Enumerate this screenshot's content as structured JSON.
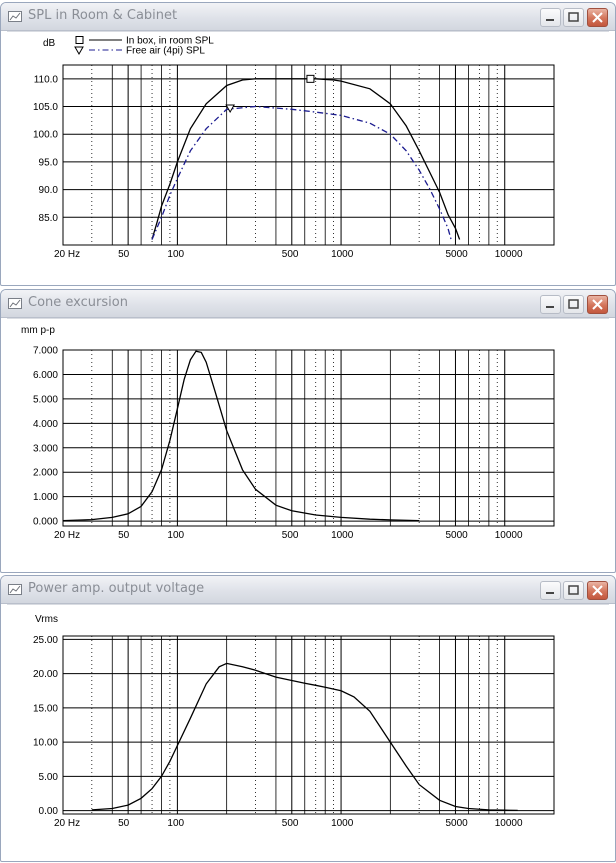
{
  "windows": [
    {
      "title": "SPL in Room & Cabinet",
      "chart_data": {
        "type": "line",
        "ylabel": "dB",
        "xscale": "log",
        "xlim": [
          20,
          20000
        ],
        "ylim": [
          80,
          112.5
        ],
        "yticks": [
          85,
          90,
          95,
          100,
          105,
          110
        ],
        "ytick_labels": [
          "85.0",
          "90.0",
          "95.0",
          "100.0",
          "105.0",
          "110.0"
        ],
        "xtick_values": [
          20,
          50,
          100,
          500,
          1000,
          5000,
          10000
        ],
        "xtick_labels": [
          "20 Hz",
          "50",
          "100",
          "500",
          "1000",
          "5000",
          "10000"
        ],
        "grid": true,
        "legend": "top-left",
        "series": [
          {
            "name": "In box, in room SPL",
            "style": "solid",
            "color": "#000000",
            "marker": "square",
            "marker_x": 650,
            "x": [
              70,
              75,
              80,
              90,
              100,
              120,
              150,
              200,
              250,
              300,
              400,
              500,
              700,
              900,
              1000,
              1500,
              2000,
              2500,
              3000,
              3500,
              4000,
              4500,
              5000,
              5300
            ],
            "y": [
              81,
              84,
              87,
              91,
              95,
              101,
              105.5,
              108.8,
              109.8,
              110,
              110,
              110,
              110,
              109.8,
              109.6,
              108.2,
              105.5,
              101.5,
              97,
              93,
              89.5,
              85.5,
              83,
              81
            ]
          },
          {
            "name": "Free air (4pi) SPL",
            "style": "dashdot",
            "color": "#1c1c90",
            "marker": "triangle",
            "marker_x": 210,
            "x": [
              70,
              80,
              90,
              100,
              120,
              150,
              200,
              300,
              500,
              700,
              1000,
              1500,
              2000,
              2500,
              3000,
              3500,
              4000,
              4500,
              4700
            ],
            "y": [
              81,
              85,
              89,
              92,
              97,
              101,
              104.5,
              105,
              104.5,
              104,
              103.4,
              102,
              100,
              97,
              93.5,
              90,
              86.5,
              83,
              81
            ]
          }
        ]
      }
    },
    {
      "title": "Cone excursion",
      "chart_data": {
        "type": "line",
        "ylabel": "mm p-p",
        "xscale": "log",
        "xlim": [
          20,
          20000
        ],
        "ylim": [
          -0.2,
          7.0
        ],
        "yticks": [
          0,
          1,
          2,
          3,
          4,
          5,
          6,
          7
        ],
        "ytick_labels": [
          "0.000",
          "1.000",
          "2.000",
          "3.000",
          "4.000",
          "5.000",
          "6.000",
          "7.000"
        ],
        "xtick_values": [
          20,
          50,
          100,
          500,
          1000,
          5000,
          10000
        ],
        "xtick_labels": [
          "20 Hz",
          "50",
          "100",
          "500",
          "1000",
          "5000",
          "10000"
        ],
        "grid": true,
        "series": [
          {
            "name": "",
            "style": "solid",
            "color": "#000000",
            "x": [
              20,
              30,
              40,
              50,
              60,
              70,
              80,
              90,
              100,
              110,
              120,
              130,
              140,
              150,
              170,
              200,
              250,
              300,
              400,
              500,
              700,
              1000,
              1500,
              2000,
              3000
            ],
            "y": [
              0.02,
              0.06,
              0.15,
              0.3,
              0.6,
              1.2,
              2.1,
              3.3,
              4.6,
              5.8,
              6.6,
              6.95,
              6.9,
              6.5,
              5.3,
              3.7,
              2.1,
              1.3,
              0.65,
              0.42,
              0.25,
              0.15,
              0.08,
              0.05,
              0.02
            ]
          }
        ]
      }
    },
    {
      "title": "Power amp. output voltage",
      "chart_data": {
        "type": "line",
        "ylabel": "Vrms",
        "xscale": "log",
        "xlim": [
          20,
          20000
        ],
        "ylim": [
          -0.5,
          25.5
        ],
        "yticks": [
          0,
          5,
          10,
          15,
          20,
          25
        ],
        "ytick_labels": [
          "0.00",
          "5.00",
          "10.00",
          "15.00",
          "20.00",
          "25.00"
        ],
        "xtick_values": [
          20,
          50,
          100,
          500,
          1000,
          5000,
          10000
        ],
        "xtick_labels": [
          "20 Hz",
          "50",
          "100",
          "500",
          "1000",
          "5000",
          "10000"
        ],
        "grid": true,
        "series": [
          {
            "name": "",
            "style": "solid",
            "color": "#000000",
            "x": [
              30,
              40,
              50,
              60,
              70,
              80,
              90,
              100,
              120,
              150,
              180,
              200,
              250,
              300,
              400,
              500,
              600,
              700,
              800,
              1000,
              1200,
              1500,
              2000,
              2500,
              3000,
              4000,
              5000,
              6000,
              8000,
              10000,
              12000
            ],
            "y": [
              0.1,
              0.3,
              0.8,
              1.8,
              3.2,
              5.0,
              7.2,
              9.5,
              13.5,
              18.5,
              21,
              21.5,
              21,
              20.5,
              19.5,
              19,
              18.6,
              18.3,
              18,
              17.5,
              16.6,
              14.5,
              10,
              6.5,
              3.8,
              1.5,
              0.6,
              0.3,
              0.1,
              0.05,
              0.02
            ]
          }
        ]
      }
    }
  ]
}
